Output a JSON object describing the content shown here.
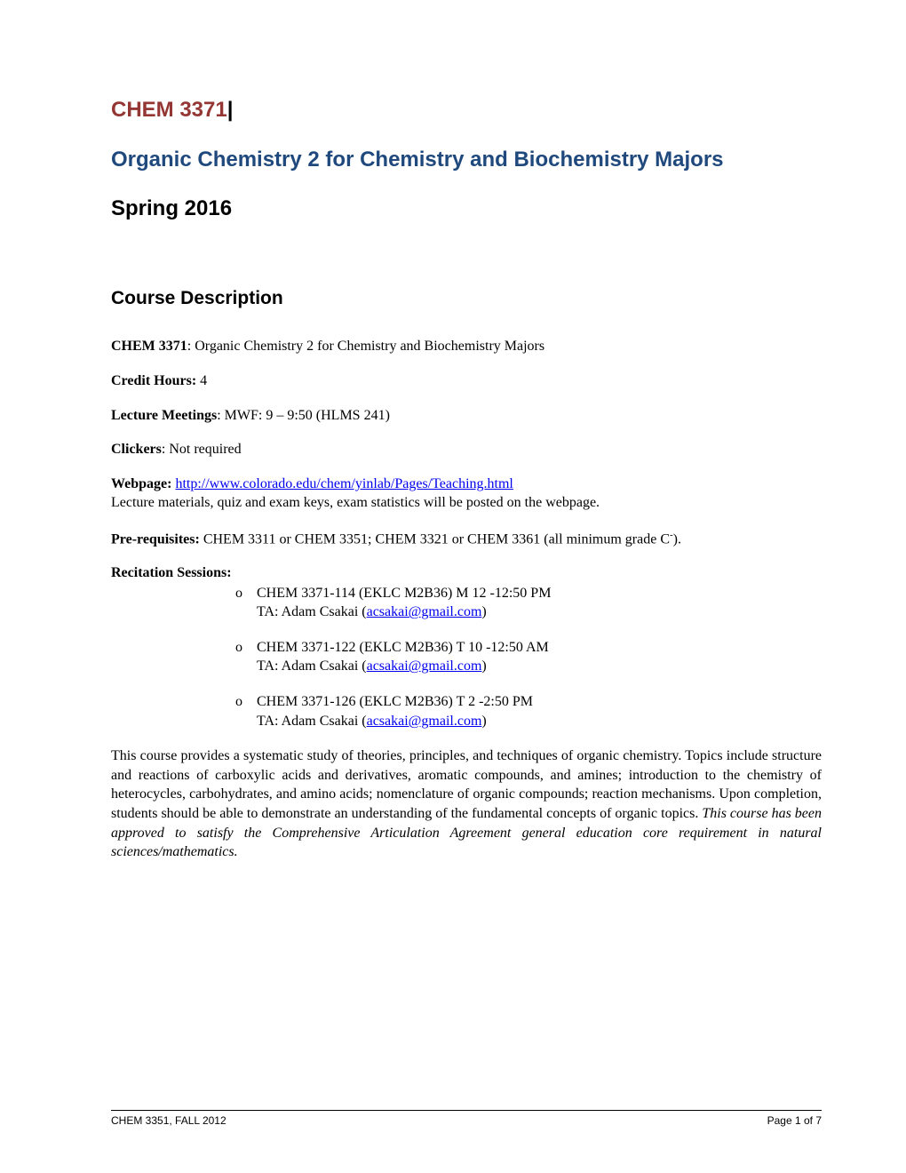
{
  "header": {
    "course_code": "CHEM 3371",
    "pipe": "|",
    "course_title": "Organic Chemistry 2 for Chemistry and Biochemistry Majors",
    "semester": "Spring 2016"
  },
  "section_heading": "Course Description",
  "fields": {
    "course_line_label": "CHEM 3371",
    "course_line_value": ": Organic Chemistry 2 for Chemistry and Biochemistry Majors",
    "credit_label": "Credit Hours: ",
    "credit_value": "4",
    "lecture_label": "Lecture Meetings",
    "lecture_value": ": MWF: 9 – 9:50 (HLMS 241)",
    "clickers_label": "Clickers",
    "clickers_value": ": Not required",
    "webpage_label": "Webpage: ",
    "webpage_url": "http://www.colorado.edu/chem/yinlab/Pages/Teaching.html",
    "webpage_sub": "Lecture materials, quiz and exam keys, exam statistics will be posted on the webpage.",
    "prereq_label": "Pre-requisites: ",
    "prereq_value_1": "CHEM 3311 or CHEM 3351; CHEM 3321 or CHEM 3361 (all minimum grade C",
    "prereq_sup": "-",
    "prereq_value_2": ")."
  },
  "recitation": {
    "heading": "Recitation Sessions:",
    "items": [
      {
        "line": "CHEM 3371-114 (EKLC M2B36) M 12 -12:50 PM",
        "ta_prefix": "TA: Adam Csakai (",
        "ta_email": "acsakai@gmail.com",
        "ta_suffix": ")"
      },
      {
        "line": "CHEM 3371-122 (EKLC M2B36) T 10 -12:50 AM",
        "ta_prefix": "TA: Adam Csakai (",
        "ta_email": "acsakai@gmail.com",
        "ta_suffix": ")"
      },
      {
        "line": "CHEM 3371-126 (EKLC M2B36) T 2 -2:50 PM",
        "ta_prefix": "TA: Adam Csakai (",
        "ta_email": "acsakai@gmail.com",
        "ta_suffix": ")"
      }
    ]
  },
  "description": {
    "main": "This course provides a systematic study of theories, principles, and techniques of organic chemistry. Topics include structure and reactions of carboxylic acids and derivatives, aromatic compounds, and amines; introduction to the chemistry of heterocycles, carbohydrates, and amino acids; nomenclature of organic compounds; reaction mechanisms. Upon completion, students should be able to demonstrate an understanding of the fundamental concepts of organic topics. ",
    "italic": "This course has been approved to satisfy the Comprehensive Articulation Agreement general education core requirement in natural sciences/mathematics."
  },
  "footer": {
    "left": "CHEM 3351, FALL 2012",
    "right": "Page 1 of 7"
  },
  "colors": {
    "code_color": "#943634",
    "title_color": "#1f497d",
    "link_color": "#0000ee",
    "text_color": "#000000",
    "background": "#ffffff"
  },
  "typography": {
    "heading_font": "Arial",
    "body_font": "Times New Roman",
    "heading_size_pt": 18,
    "section_size_pt": 16,
    "body_size_pt": 12,
    "footer_size_pt": 9
  }
}
